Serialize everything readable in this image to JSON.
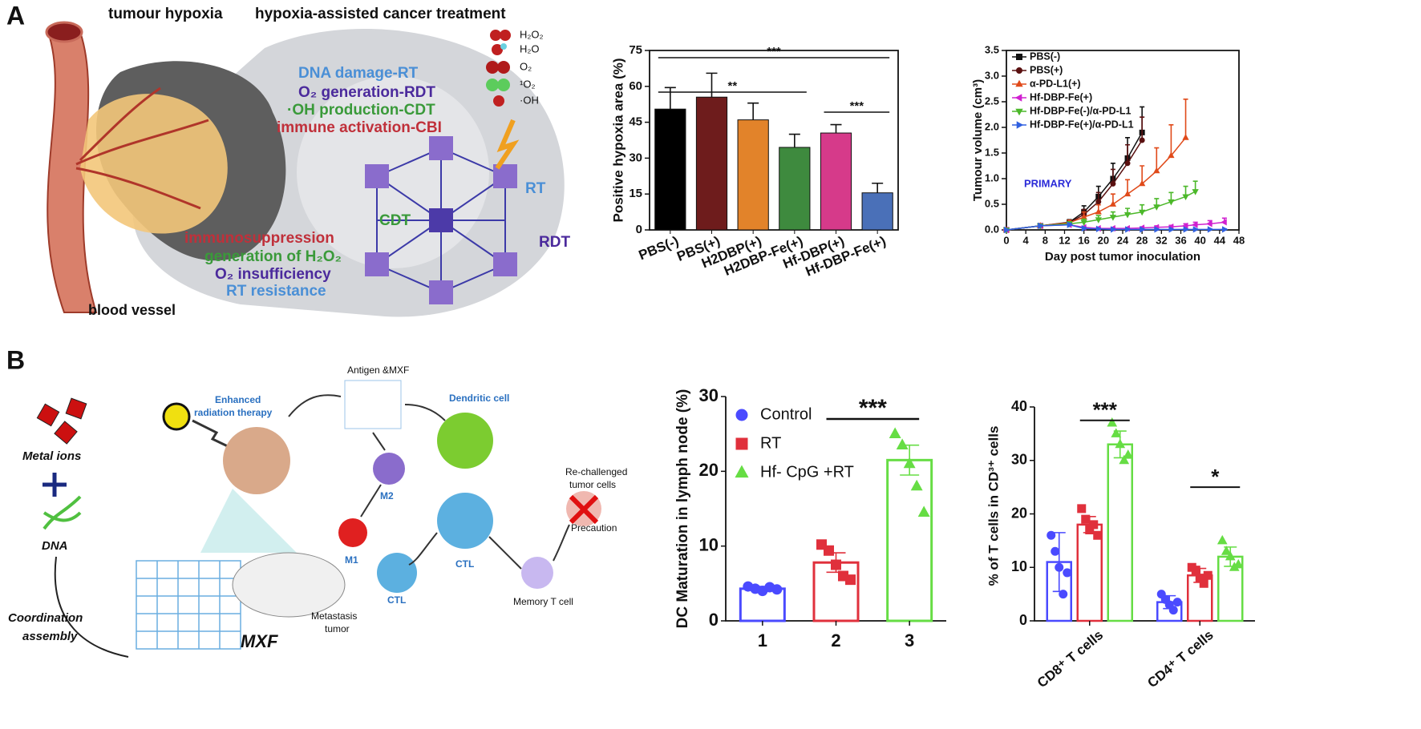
{
  "panel_labels": [
    "A",
    "B"
  ],
  "illustration_a": {
    "title_left": "tumour hypoxia",
    "title_right": "hypoxia-assisted cancer treatment",
    "vessel_label": "blood vessel",
    "molecules": [
      "H₂O₂",
      "H₂O",
      "O₂",
      "¹O₂",
      "·OH"
    ],
    "treatments": [
      "DNA damage-RT",
      "O₂ generation-RDT",
      "·OH production-CDT",
      "immune activation-CBI"
    ],
    "problems": [
      "immunosuppression",
      "generation of H₂O₂",
      "O₂ insufficiency",
      "RT resistance"
    ],
    "arrows": [
      "CDT",
      "RT",
      "RDT"
    ]
  },
  "illustration_b": {
    "metal": "Metal ions",
    "dna": "DNA",
    "assembly": [
      "Coordination",
      "assembly"
    ],
    "mxf": "MXF",
    "radiation": [
      "Enhanced",
      "radiation therapy"
    ],
    "antigen": "Antigen &MXF",
    "dendritic": "Dendritic cell",
    "m2": "M2",
    "m1": "M1",
    "ctl": [
      "CTL",
      "CTL"
    ],
    "metastasis": [
      "Metastasis",
      "tumor"
    ],
    "rechallenged": [
      "Re-challenged",
      "tumor  cells"
    ],
    "precaution": "Precaution",
    "memory": "Memory T cell"
  },
  "chart_data": [
    {
      "type": "bar",
      "ylabel": "Positive hypoxia area (%)",
      "categories": [
        "PBS(-)",
        "PBS(+)",
        "H2DBP(+)",
        "H2DBP-Fe(+)",
        "Hf-DBP(+)",
        "Hf-DBP-Fe(+)"
      ],
      "values": [
        50.5,
        55.5,
        46,
        34.5,
        40.5,
        15.5
      ],
      "errors": [
        9,
        10,
        7,
        5.5,
        3.5,
        4
      ],
      "colors": [
        "#000000",
        "#6e1c1c",
        "#e2832a",
        "#3e8a3e",
        "#d63a8a",
        "#4a70b8"
      ],
      "ylim": [
        0,
        75
      ],
      "yticks": [
        0,
        15,
        30,
        45,
        60,
        75
      ],
      "annotations": [
        "***",
        "**",
        "***"
      ]
    },
    {
      "type": "line",
      "xlabel": "Day post tumor inoculation",
      "ylabel": "Tumour volume (cm³)",
      "annotation": "PRIMARY",
      "x": [
        0,
        7,
        13,
        16,
        19,
        22,
        25,
        28,
        31,
        34,
        37,
        39,
        42,
        45
      ],
      "series": [
        {
          "name": "PBS(-)",
          "color": "#111111",
          "marker": "square",
          "values": [
            0,
            0.08,
            0.15,
            0.35,
            0.65,
            1.0,
            1.4,
            1.9,
            null,
            null,
            null,
            null,
            null,
            null
          ],
          "errors": [
            0,
            0.02,
            0.05,
            0.12,
            0.2,
            0.3,
            0.4,
            0.5,
            null,
            null,
            null,
            null,
            null,
            null
          ]
        },
        {
          "name": "PBS(+)",
          "color": "#5a1010",
          "marker": "circle",
          "values": [
            0,
            0.08,
            0.14,
            0.3,
            0.55,
            0.9,
            1.3,
            1.75,
            null,
            null,
            null,
            null,
            null,
            null
          ],
          "errors": [
            0,
            0.02,
            0.05,
            0.1,
            0.18,
            0.28,
            0.36,
            0.45,
            null,
            null,
            null,
            null,
            null,
            null
          ]
        },
        {
          "name": "α-PD-L1(+)",
          "color": "#e04a1a",
          "marker": "triangle",
          "values": [
            0,
            0.08,
            0.14,
            0.25,
            0.35,
            0.5,
            0.7,
            0.9,
            1.15,
            1.45,
            1.8,
            null,
            null,
            null
          ],
          "errors": [
            0,
            0.02,
            0.05,
            0.1,
            0.14,
            0.2,
            0.28,
            0.35,
            0.45,
            0.6,
            0.75,
            null,
            null,
            null
          ]
        },
        {
          "name": "Hf-DBP-Fe(+)",
          "color": "#d020d0",
          "marker": "left",
          "values": [
            0,
            0.08,
            0.1,
            0.05,
            0.03,
            0.03,
            0.03,
            0.04,
            0.05,
            0.06,
            0.08,
            0.1,
            0.12,
            0.15
          ],
          "errors": [
            0,
            0.02,
            0.03,
            0.02,
            0.02,
            0.02,
            0.02,
            0.02,
            0.03,
            0.03,
            0.04,
            0.05,
            0.06,
            0.08
          ]
        },
        {
          "name": "Hf-DBP-Fe(-)/α-PD-L1",
          "color": "#4cb82a",
          "marker": "down",
          "values": [
            0,
            0.08,
            0.12,
            0.15,
            0.2,
            0.25,
            0.3,
            0.35,
            0.45,
            0.55,
            0.65,
            0.75,
            null,
            null
          ],
          "errors": [
            0,
            0.02,
            0.04,
            0.06,
            0.08,
            0.1,
            0.12,
            0.14,
            0.16,
            0.18,
            0.2,
            0.2,
            null,
            null
          ]
        },
        {
          "name": "Hf-DBP-Fe(+)/α-PD-L1",
          "color": "#3060e0",
          "marker": "right",
          "values": [
            0,
            0.08,
            0.1,
            0.03,
            0.02,
            0.01,
            0.01,
            0.01,
            0.01,
            0.01,
            0.01,
            0.01,
            0.01,
            0.01
          ],
          "errors": [
            0,
            0.02,
            0.03,
            0.02,
            0.01,
            0.01,
            0.01,
            0.01,
            0.01,
            0.01,
            0.01,
            0.01,
            0.01,
            0.01
          ]
        }
      ],
      "xlim": [
        0,
        48
      ],
      "xticks": [
        0,
        4,
        8,
        12,
        16,
        20,
        24,
        28,
        32,
        36,
        40,
        44,
        48
      ],
      "ylim": [
        0,
        3.5
      ],
      "yticks": [
        {
          "value": 0,
          "label": "0.0"
        },
        0.5,
        {
          "value": 1,
          "label": "1.0"
        },
        1.5,
        {
          "value": 2,
          "label": "2.0"
        },
        2.5,
        {
          "value": 3,
          "label": "3.0"
        },
        3.5
      ]
    },
    {
      "type": "bar",
      "ylabel": "DC Maturation in lymph node (%)",
      "categories": [
        "1",
        "2",
        "3"
      ],
      "legend": [
        "Control",
        "RT",
        "Hf- CpG +RT"
      ],
      "values": [
        4.3,
        7.8,
        21.5
      ],
      "errors": [
        0.3,
        1.3,
        2.0
      ],
      "points": [
        [
          4.6,
          4.3,
          4.0,
          4.5,
          4.2
        ],
        [
          10.2,
          9.4,
          7.5,
          6.0,
          5.5
        ],
        [
          25.0,
          23.5,
          21.0,
          18.0,
          14.5
        ]
      ],
      "colors": [
        "#4a4aff",
        "#e0303c",
        "#66dd44"
      ],
      "ylim": [
        0,
        30
      ],
      "yticks": [
        0,
        10,
        20,
        30
      ],
      "annotation": "***"
    },
    {
      "type": "grouped_bar",
      "ylabel": "% of  T cells in CD³⁺ cells",
      "categories": [
        "CD8⁺ T cells",
        "CD4⁺ T cells"
      ],
      "series": [
        {
          "color": "#4a4aff",
          "values": [
            11,
            3.5
          ],
          "errors": [
            5.5,
            1.2
          ],
          "points": [
            [
              16,
              13,
              10,
              5,
              9
            ],
            [
              5,
              4,
              3,
              2,
              3.5
            ]
          ]
        },
        {
          "color": "#e0303c",
          "values": [
            18,
            8.5
          ],
          "errors": [
            1.5,
            1.3
          ],
          "points": [
            [
              21,
              19,
              17,
              18,
              16
            ],
            [
              10,
              9.5,
              8,
              7,
              8.5
            ]
          ]
        },
        {
          "color": "#66dd44",
          "values": [
            33,
            12
          ],
          "errors": [
            2.5,
            1.8
          ],
          "points": [
            [
              37,
              35,
              33,
              30,
              31
            ],
            [
              15,
              13,
              12,
              10,
              10.5
            ]
          ]
        }
      ],
      "ylim": [
        0,
        40
      ],
      "yticks": [
        0,
        10,
        20,
        30,
        40
      ],
      "annotations": [
        "***",
        "*"
      ]
    }
  ]
}
